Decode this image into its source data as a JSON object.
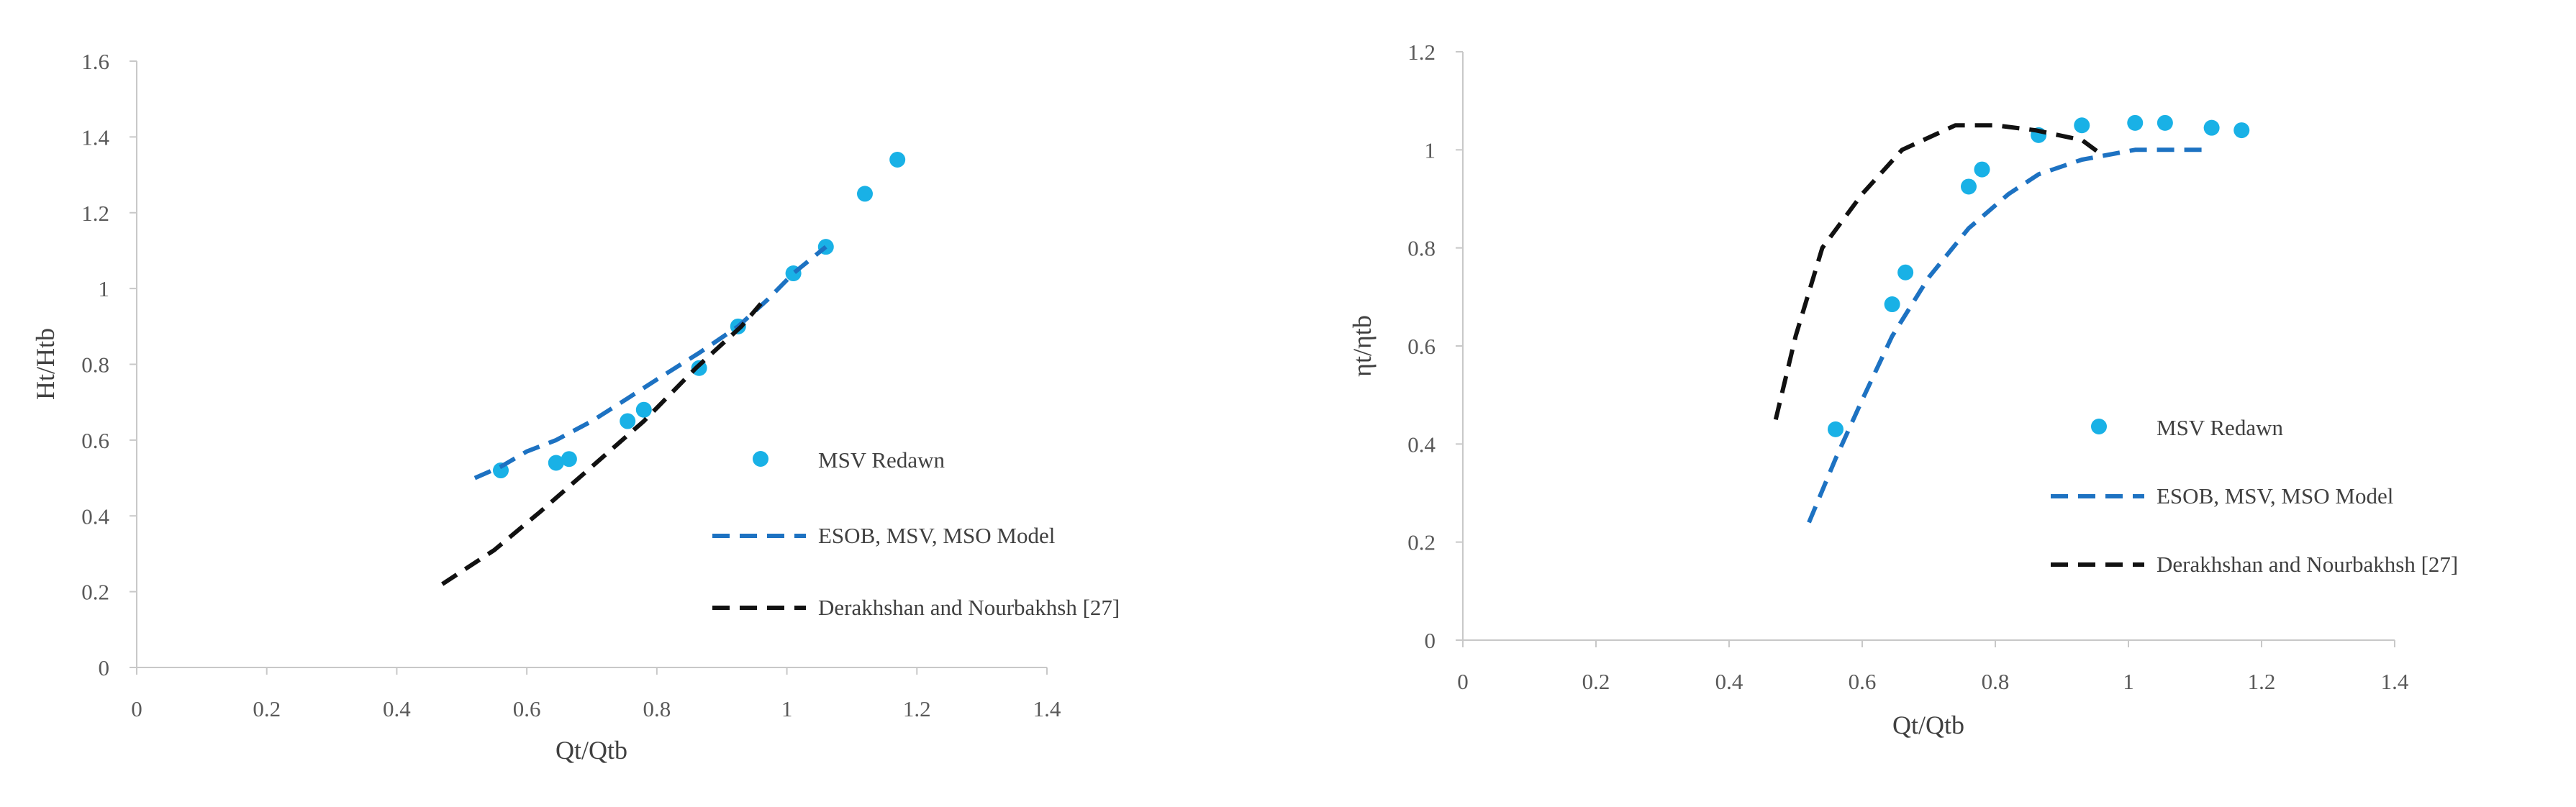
{
  "colors": {
    "points": "#19b1e6",
    "model": "#1d72c2",
    "reference": "#111111",
    "axis": "#c8c8c8"
  },
  "chart_data": [
    {
      "type": "scatter",
      "title": "",
      "xlabel": "Qt/Qtb",
      "ylabel": "Ht/Htb",
      "xlim": [
        0,
        1.4
      ],
      "ylim": [
        0,
        1.6
      ],
      "xticks": [
        "0",
        "0.2",
        "0.4",
        "0.6",
        "0.8",
        "1",
        "1.2",
        "1.4"
      ],
      "yticks": [
        "0",
        "0.2",
        "0.4",
        "0.6",
        "0.8",
        "1",
        "1.2",
        "1.4",
        "1.6"
      ],
      "grid": false,
      "legend_position": "right",
      "series": [
        {
          "name": "MSV Redawn",
          "kind": "markers",
          "x": [
            0.56,
            0.645,
            0.665,
            0.755,
            0.78,
            0.865,
            0.925,
            1.01,
            1.06,
            1.12,
            1.17
          ],
          "y": [
            0.52,
            0.54,
            0.55,
            0.65,
            0.68,
            0.79,
            0.9,
            1.04,
            1.11,
            1.25,
            1.34
          ]
        },
        {
          "name": "ESOB, MSV, MSO Model",
          "kind": "dashed-line",
          "x": [
            0.52,
            0.56,
            0.6,
            0.645,
            0.7,
            0.755,
            0.8,
            0.865,
            0.925,
            0.97,
            1.01,
            1.06
          ],
          "y": [
            0.5,
            0.53,
            0.57,
            0.6,
            0.65,
            0.71,
            0.76,
            0.83,
            0.9,
            0.97,
            1.04,
            1.11
          ]
        },
        {
          "name": "Derakhshan and Nourbakhsh [27]",
          "kind": "dashed-line",
          "x": [
            0.47,
            0.55,
            0.62,
            0.7,
            0.78,
            0.86,
            0.93,
            0.96
          ],
          "y": [
            0.22,
            0.31,
            0.41,
            0.53,
            0.65,
            0.79,
            0.9,
            0.96
          ]
        }
      ]
    },
    {
      "type": "scatter",
      "title": "",
      "xlabel": "Qt/Qtb",
      "ylabel": "ηt/ηtb",
      "xlim": [
        0,
        1.4
      ],
      "ylim": [
        0,
        1.2
      ],
      "xticks": [
        "0",
        "0.2",
        "0.4",
        "0.6",
        "0.8",
        "1",
        "1.2",
        "1.4"
      ],
      "yticks": [
        "0",
        "0.2",
        "0.4",
        "0.6",
        "0.8",
        "1",
        "1.2"
      ],
      "grid": false,
      "legend_position": "right",
      "series": [
        {
          "name": "MSV Redawn",
          "kind": "markers",
          "x": [
            0.56,
            0.645,
            0.665,
            0.76,
            0.78,
            0.865,
            0.93,
            1.01,
            1.055,
            1.125,
            1.17
          ],
          "y": [
            0.43,
            0.685,
            0.75,
            0.925,
            0.96,
            1.03,
            1.05,
            1.055,
            1.055,
            1.045,
            1.04
          ]
        },
        {
          "name": "ESOB, MSV, MSO Model",
          "kind": "dashed-line",
          "x": [
            0.52,
            0.56,
            0.6,
            0.645,
            0.7,
            0.76,
            0.82,
            0.865,
            0.93,
            1.01,
            1.06,
            1.12
          ],
          "y": [
            0.24,
            0.37,
            0.49,
            0.62,
            0.74,
            0.84,
            0.91,
            0.95,
            0.98,
            1.0,
            1.0,
            1.0
          ]
        },
        {
          "name": "Derakhshan and Nourbakhsh [27]",
          "kind": "dashed-line",
          "x": [
            0.47,
            0.5,
            0.54,
            0.6,
            0.66,
            0.74,
            0.8,
            0.86,
            0.93,
            0.96
          ],
          "y": [
            0.45,
            0.62,
            0.8,
            0.91,
            1.0,
            1.05,
            1.05,
            1.04,
            1.02,
            0.99
          ]
        }
      ]
    }
  ]
}
